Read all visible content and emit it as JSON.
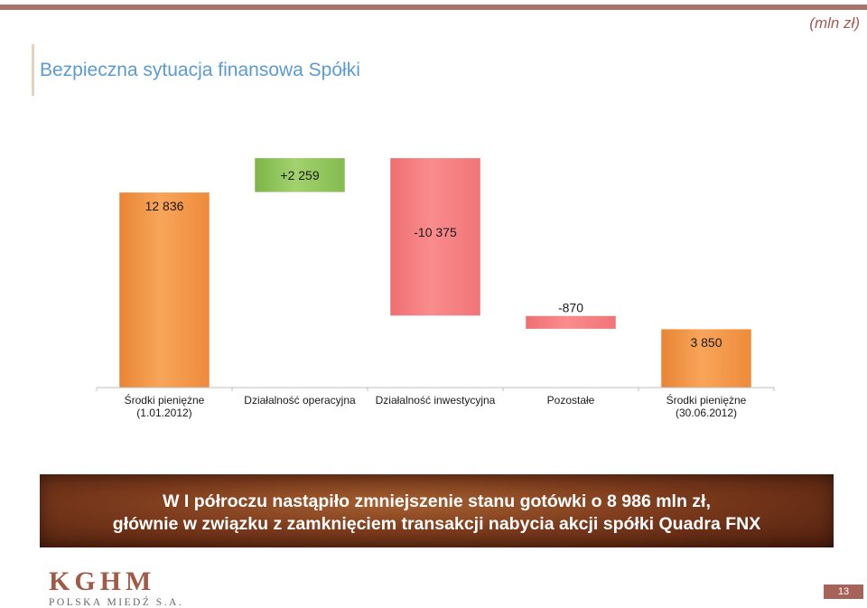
{
  "header": {
    "unit_label": "(mln zł)",
    "title": "Bezpieczna sytuacja finansowa Spółki"
  },
  "chart_data": {
    "type": "bar",
    "subtype": "waterfall",
    "categories": [
      [
        "Środki pieniężne",
        "(1.01.2012)"
      ],
      [
        "Działalność operacyjna"
      ],
      [
        "Działalność inwestycyjna"
      ],
      [
        "Pozostałe"
      ],
      [
        "Środki pieniężne",
        "(30.06.2012)"
      ]
    ],
    "values": [
      12836,
      2259,
      -10375,
      -870,
      3850
    ],
    "data_labels": [
      "12 836",
      "+2 259",
      "-10 375",
      "-870",
      "3 850"
    ],
    "bar_kinds": [
      "total",
      "increase",
      "decrease",
      "decrease",
      "total"
    ],
    "colors": {
      "total": "#f59b4c",
      "increase": "#8fc45a",
      "decrease": "#f37d7f"
    },
    "ylim": [
      0,
      15500
    ],
    "grid": false,
    "legend": "none"
  },
  "banner": {
    "line1": "W I półroczu nastąpiło zmniejszenie stanu gotówki o 8 986 mln zł,",
    "line2": "głównie w związku z zamknięciem transakcji nabycia akcji spółki Quadra FNX"
  },
  "footer": {
    "logo_main": "KGHM",
    "logo_sub": "POLSKA MIEDŹ S.A.",
    "page_number": "13"
  }
}
